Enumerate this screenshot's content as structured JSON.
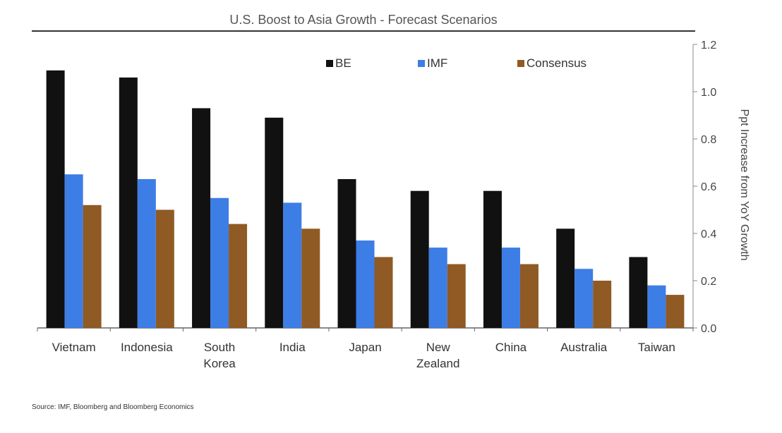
{
  "chart_data": {
    "type": "bar",
    "title": "U.S. Boost to Asia Growth - Forecast Scenarios",
    "xlabel": "",
    "ylabel": "Ppt Increase from YoY Growth",
    "ylim": [
      0,
      1.2
    ],
    "yticks": [
      "0.0",
      "0.2",
      "0.4",
      "0.6",
      "0.8",
      "1.0",
      "1.2"
    ],
    "legend_position": "top",
    "grid": false,
    "categories": [
      [
        "Vietnam"
      ],
      [
        "Indonesia"
      ],
      [
        "South",
        "Korea"
      ],
      [
        "India"
      ],
      [
        "Japan"
      ],
      [
        "New",
        "Zealand"
      ],
      [
        "China"
      ],
      [
        "Australia"
      ],
      [
        "Taiwan"
      ]
    ],
    "series": [
      {
        "name": "BE",
        "color": "#111111",
        "values": [
          1.09,
          1.06,
          0.93,
          0.89,
          0.63,
          0.58,
          0.58,
          0.42,
          0.3
        ]
      },
      {
        "name": "IMF",
        "color": "#3d7de6",
        "values": [
          0.65,
          0.63,
          0.55,
          0.53,
          0.37,
          0.34,
          0.34,
          0.25,
          0.18
        ]
      },
      {
        "name": "Consensus",
        "color": "#8f5a24",
        "values": [
          0.52,
          0.5,
          0.44,
          0.42,
          0.3,
          0.27,
          0.27,
          0.2,
          0.14
        ]
      }
    ],
    "source": "Source: IMF, Bloomberg and Bloomberg Economics"
  }
}
